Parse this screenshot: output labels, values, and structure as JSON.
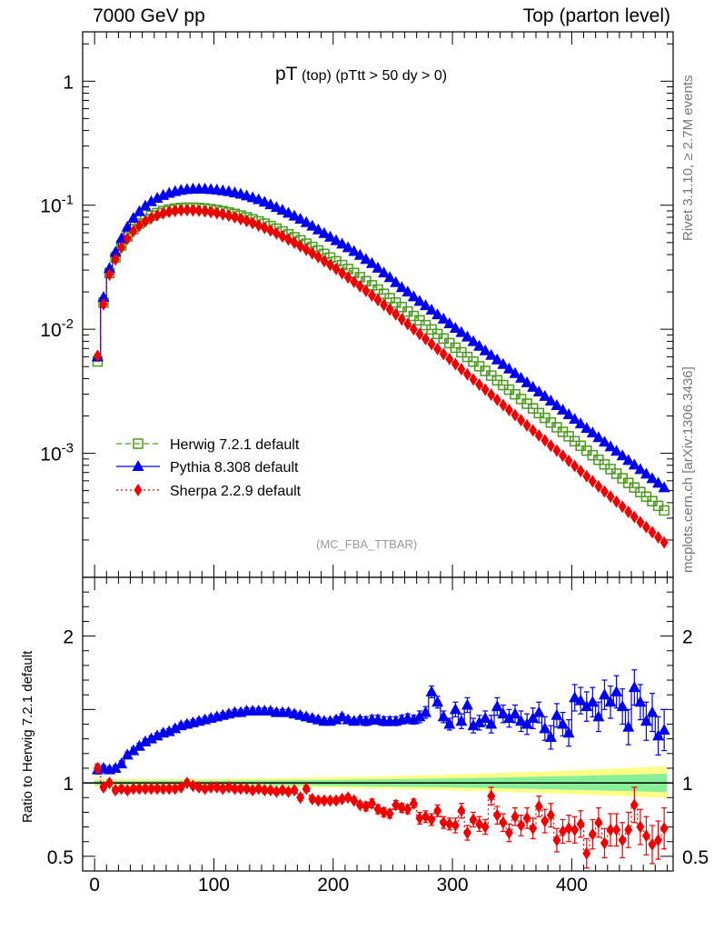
{
  "header": {
    "left": "7000 GeV pp",
    "right": "Top (parton level)"
  },
  "side_text": {
    "top": "Rivet 3.1.10, ≥ 2.7M events",
    "bottom": "mcplots.cern.ch [arXiv:1306.3436]"
  },
  "watermark": "(MC_FBA_TTBAR)",
  "plot_title": {
    "main": "pT",
    "sub1": "(top)",
    "sub2": "(pTtt > 50 dy > 0)"
  },
  "ratio_ylabel": "Ratio to Herwig 7.2.1 default",
  "colors": {
    "herwig": "#4a9a1e",
    "pythia": "#0000ee",
    "sherpa": "#ee0000",
    "band_outer": "#ffff88",
    "band_inner": "#88ee99"
  },
  "chart_data": [
    {
      "type": "line",
      "panel": "main",
      "yscale": "log",
      "ylim": [
        0.0001,
        2.5
      ],
      "xlim": [
        -10,
        485
      ],
      "yticks": [
        {
          "value": 1,
          "label": "1"
        },
        {
          "value": 0.1,
          "label": "10^-1"
        },
        {
          "value": 0.01,
          "label": "10^-2"
        },
        {
          "value": 0.001,
          "label": "10^-3"
        }
      ],
      "legend_position": "bottom-left",
      "x": [
        2.5,
        7.5,
        12.5,
        17.5,
        22.5,
        27.5,
        32.5,
        37.5,
        42.5,
        47.5,
        52.5,
        57.5,
        62.5,
        67.5,
        72.5,
        77.5,
        82.5,
        87.5,
        92.5,
        97.5,
        102.5,
        107.5,
        112.5,
        117.5,
        122.5,
        127.5,
        132.5,
        137.5,
        142.5,
        147.5,
        152.5,
        157.5,
        162.5,
        167.5,
        172.5,
        177.5,
        182.5,
        187.5,
        192.5,
        197.5,
        202.5,
        207.5,
        212.5,
        217.5,
        222.5,
        227.5,
        232.5,
        237.5,
        242.5,
        247.5,
        252.5,
        257.5,
        262.5,
        267.5,
        272.5,
        277.5,
        282.5,
        287.5,
        292.5,
        297.5,
        302.5,
        307.5,
        312.5,
        317.5,
        322.5,
        327.5,
        332.5,
        337.5,
        342.5,
        347.5,
        352.5,
        357.5,
        362.5,
        367.5,
        372.5,
        377.5,
        382.5,
        387.5,
        392.5,
        397.5,
        402.5,
        407.5,
        412.5,
        417.5,
        422.5,
        427.5,
        432.5,
        437.5,
        442.5,
        447.5,
        452.5,
        457.5,
        462.5,
        467.5,
        472.5,
        477.5
      ],
      "series": [
        {
          "name": "Herwig 7.2.1 default",
          "marker": "open-square",
          "line": "dashed",
          "values": [
            0.0055,
            0.0164,
            0.0284,
            0.038,
            0.0473,
            0.056,
            0.064,
            0.0711,
            0.0772,
            0.0824,
            0.0865,
            0.0898,
            0.0923,
            0.094,
            0.0951,
            0.0955,
            0.0955,
            0.095,
            0.0941,
            0.093,
            0.0914,
            0.0896,
            0.0875,
            0.0851,
            0.0826,
            0.0799,
            0.077,
            0.0741,
            0.071,
            0.0679,
            0.0647,
            0.0615,
            0.0583,
            0.0551,
            0.0521,
            0.049,
            0.0461,
            0.0432,
            0.0405,
            0.0378,
            0.0353,
            0.0329,
            0.0306,
            0.0284,
            0.0263,
            0.0244,
            0.0226,
            0.0209,
            0.0193,
            0.0178,
            0.0164,
            0.0151,
            0.0139,
            0.0128,
            0.0118,
            0.0108,
            0.00996,
            0.00916,
            0.00842,
            0.00773,
            0.0071,
            0.00652,
            0.00598,
            0.00548,
            0.00503,
            0.00461,
            0.00423,
            0.00388,
            0.00355,
            0.00326,
            0.00299,
            0.00274,
            0.00251,
            0.0023,
            0.00211,
            0.00193,
            0.00177,
            0.00162,
            0.00149,
            0.00137,
            0.00125,
            0.00115,
            0.00105,
            0.000966,
            0.000886,
            0.000813,
            0.000746,
            0.000685,
            0.000629,
            0.000577,
            0.00053,
            0.000487,
            0.000447,
            0.000411,
            0.000377,
            0.000346
          ]
        },
        {
          "name": "Pythia 8.308 default",
          "marker": "triangle",
          "line": "solid",
          "values": [
            0.006,
            0.0181,
            0.031,
            0.0418,
            0.0537,
            0.0668,
            0.0785,
            0.0889,
            0.0985,
            0.107,
            0.114,
            0.12,
            0.125,
            0.129,
            0.132,
            0.134,
            0.135,
            0.135,
            0.135,
            0.134,
            0.133,
            0.131,
            0.129,
            0.126,
            0.123,
            0.119,
            0.115,
            0.111,
            0.106,
            0.101,
            0.096,
            0.0912,
            0.0864,
            0.0818,
            0.0772,
            0.0726,
            0.068,
            0.0634,
            0.0592,
            0.0554,
            0.0519,
            0.0487,
            0.0455,
            0.0424,
            0.0395,
            0.0366,
            0.0339,
            0.0311,
            0.0285,
            0.0261,
            0.0238,
            0.0217,
            0.02,
            0.0183,
            0.0168,
            0.0155,
            0.0143,
            0.0131,
            0.0121,
            0.0111,
            0.0102,
            0.00942,
            0.00866,
            0.00796,
            0.00731,
            0.00672,
            0.00617,
            0.00567,
            0.00521,
            0.00479,
            0.0044,
            0.00404,
            0.00371,
            0.00341,
            0.00313,
            0.00288,
            0.00264,
            0.00243,
            0.00223,
            0.00205,
            0.00188,
            0.00173,
            0.00159,
            0.00146,
            0.00134,
            0.00123,
            0.00113,
            0.00104,
            0.000955,
            0.000877,
            0.000806,
            0.000741,
            0.000681,
            0.000626,
            0.000575,
            0.000528
          ]
        },
        {
          "name": "Sherpa 2.2.9 default",
          "marker": "diamond",
          "line": "dotted",
          "values": [
            0.0061,
            0.0159,
            0.0276,
            0.0365,
            0.0457,
            0.0538,
            0.0617,
            0.0683,
            0.0741,
            0.0789,
            0.0829,
            0.0861,
            0.0885,
            0.09,
            0.091,
            0.0912,
            0.0909,
            0.0903,
            0.0893,
            0.088,
            0.0864,
            0.0845,
            0.0823,
            0.0799,
            0.0773,
            0.0745,
            0.0716,
            0.0686,
            0.0655,
            0.0624,
            0.0592,
            0.056,
            0.0529,
            0.0498,
            0.0467,
            0.0438,
            0.0409,
            0.0382,
            0.0355,
            0.033,
            0.0306,
            0.0283,
            0.0261,
            0.0241,
            0.0222,
            0.0204,
            0.0187,
            0.0172,
            0.0157,
            0.0144,
            0.0132,
            0.012,
            0.011,
            0.01,
            0.00915,
            0.00834,
            0.0076,
            0.00693,
            0.00631,
            0.00575,
            0.00523,
            0.00476,
            0.00433,
            0.00394,
            0.00358,
            0.00326,
            0.00297,
            0.0027,
            0.00245,
            0.00223,
            0.00203,
            0.00185,
            0.00168,
            0.00153,
            0.00139,
            0.00127,
            0.00115,
            0.00105,
            0.000955,
            0.000869,
            0.00079,
            0.000719,
            0.000654,
            0.000595,
            0.000541,
            0.000492,
            0.000448,
            0.000408,
            0.000371,
            0.000337,
            0.000307,
            0.000279,
            0.000254,
            0.000231,
            0.00021,
            0.000191
          ]
        }
      ]
    },
    {
      "type": "line",
      "panel": "ratio",
      "yscale": "linear",
      "ylim": [
        0.4,
        2.4
      ],
      "xlim": [
        -10,
        485
      ],
      "yticks": [
        {
          "value": 0.5,
          "label": "0.5"
        },
        {
          "value": 1,
          "label": "1"
        },
        {
          "value": 2,
          "label": "2"
        }
      ],
      "xticks": [
        0,
        100,
        200,
        300,
        400
      ],
      "x": [
        2.5,
        7.5,
        12.5,
        17.5,
        22.5,
        27.5,
        32.5,
        37.5,
        42.5,
        47.5,
        52.5,
        57.5,
        62.5,
        67.5,
        72.5,
        77.5,
        82.5,
        87.5,
        92.5,
        97.5,
        102.5,
        107.5,
        112.5,
        117.5,
        122.5,
        127.5,
        132.5,
        137.5,
        142.5,
        147.5,
        152.5,
        157.5,
        162.5,
        167.5,
        172.5,
        177.5,
        182.5,
        187.5,
        192.5,
        197.5,
        202.5,
        207.5,
        212.5,
        217.5,
        222.5,
        227.5,
        232.5,
        237.5,
        242.5,
        247.5,
        252.5,
        257.5,
        262.5,
        267.5,
        272.5,
        277.5,
        282.5,
        287.5,
        292.5,
        297.5,
        302.5,
        307.5,
        312.5,
        317.5,
        322.5,
        327.5,
        332.5,
        337.5,
        342.5,
        347.5,
        352.5,
        357.5,
        362.5,
        367.5,
        372.5,
        377.5,
        382.5,
        387.5,
        392.5,
        397.5,
        402.5,
        407.5,
        412.5,
        417.5,
        422.5,
        427.5,
        432.5,
        437.5,
        442.5,
        447.5,
        452.5,
        457.5,
        462.5,
        467.5,
        472.5,
        477.5
      ],
      "series": [
        {
          "name": "Pythia 8.308 default",
          "values": [
            1.09,
            1.1,
            1.09,
            1.1,
            1.13,
            1.19,
            1.22,
            1.25,
            1.28,
            1.3,
            1.32,
            1.34,
            1.35,
            1.37,
            1.39,
            1.4,
            1.41,
            1.42,
            1.43,
            1.44,
            1.45,
            1.46,
            1.47,
            1.48,
            1.48,
            1.49,
            1.49,
            1.49,
            1.49,
            1.49,
            1.48,
            1.48,
            1.48,
            1.47,
            1.46,
            1.45,
            1.44,
            1.43,
            1.42,
            1.42,
            1.43,
            1.45,
            1.43,
            1.42,
            1.43,
            1.42,
            1.43,
            1.43,
            1.42,
            1.42,
            1.42,
            1.43,
            1.44,
            1.43,
            1.45,
            1.48,
            1.62,
            1.55,
            1.45,
            1.4,
            1.5,
            1.42,
            1.53,
            1.39,
            1.41,
            1.44,
            1.4,
            1.52,
            1.47,
            1.44,
            1.47,
            1.42,
            1.4,
            1.44,
            1.48,
            1.37,
            1.31,
            1.46,
            1.4,
            1.34,
            1.58,
            1.56,
            1.52,
            1.55,
            1.45,
            1.6,
            1.55,
            1.62,
            1.52,
            1.38,
            1.65,
            1.55,
            1.42,
            1.48,
            1.32,
            1.36
          ],
          "errors": [
            0.03,
            0.02,
            0.02,
            0.02,
            0.02,
            0.02,
            0.02,
            0.02,
            0.02,
            0.02,
            0.02,
            0.02,
            0.02,
            0.02,
            0.02,
            0.02,
            0.02,
            0.02,
            0.02,
            0.02,
            0.02,
            0.02,
            0.02,
            0.02,
            0.02,
            0.02,
            0.02,
            0.02,
            0.02,
            0.02,
            0.02,
            0.02,
            0.02,
            0.02,
            0.02,
            0.02,
            0.02,
            0.02,
            0.02,
            0.02,
            0.02,
            0.02,
            0.02,
            0.02,
            0.02,
            0.03,
            0.03,
            0.03,
            0.03,
            0.03,
            0.03,
            0.03,
            0.03,
            0.03,
            0.04,
            0.04,
            0.04,
            0.04,
            0.04,
            0.04,
            0.05,
            0.05,
            0.05,
            0.05,
            0.05,
            0.05,
            0.06,
            0.06,
            0.06,
            0.06,
            0.06,
            0.07,
            0.07,
            0.07,
            0.07,
            0.08,
            0.08,
            0.08,
            0.08,
            0.09,
            0.09,
            0.09,
            0.1,
            0.1,
            0.1,
            0.1,
            0.11,
            0.11,
            0.12,
            0.12,
            0.12,
            0.12,
            0.13,
            0.13,
            0.13,
            0.14
          ]
        },
        {
          "name": "Sherpa 2.2.9 default",
          "values": [
            1.1,
            0.97,
            1.0,
            0.95,
            0.96,
            0.95,
            0.96,
            0.96,
            0.96,
            0.96,
            0.96,
            0.96,
            0.96,
            0.96,
            0.97,
            1.0,
            0.98,
            0.97,
            0.96,
            0.97,
            0.97,
            0.96,
            0.97,
            0.96,
            0.96,
            0.96,
            0.95,
            0.96,
            0.95,
            0.95,
            0.94,
            0.95,
            0.94,
            0.95,
            0.9,
            0.96,
            0.89,
            0.88,
            0.88,
            0.88,
            0.88,
            0.89,
            0.9,
            0.88,
            0.85,
            0.84,
            0.86,
            0.82,
            0.8,
            0.79,
            0.85,
            0.83,
            0.82,
            0.86,
            0.76,
            0.77,
            0.75,
            0.81,
            0.73,
            0.72,
            0.71,
            0.81,
            0.66,
            0.75,
            0.72,
            0.7,
            0.91,
            0.78,
            0.73,
            0.66,
            0.77,
            0.71,
            0.76,
            0.69,
            0.84,
            0.74,
            0.78,
            0.61,
            0.67,
            0.69,
            0.68,
            0.72,
            0.52,
            0.65,
            0.73,
            0.59,
            0.68,
            0.68,
            0.61,
            0.68,
            0.85,
            0.7,
            0.64,
            0.58,
            0.61,
            0.69
          ],
          "errors": [
            0.03,
            0.02,
            0.02,
            0.02,
            0.02,
            0.02,
            0.02,
            0.02,
            0.02,
            0.02,
            0.02,
            0.02,
            0.02,
            0.02,
            0.02,
            0.02,
            0.02,
            0.02,
            0.02,
            0.02,
            0.02,
            0.02,
            0.02,
            0.02,
            0.02,
            0.02,
            0.02,
            0.02,
            0.02,
            0.02,
            0.02,
            0.02,
            0.02,
            0.02,
            0.02,
            0.02,
            0.02,
            0.02,
            0.02,
            0.02,
            0.02,
            0.02,
            0.02,
            0.02,
            0.02,
            0.03,
            0.03,
            0.03,
            0.03,
            0.03,
            0.03,
            0.03,
            0.03,
            0.03,
            0.04,
            0.04,
            0.04,
            0.04,
            0.04,
            0.04,
            0.05,
            0.05,
            0.05,
            0.05,
            0.05,
            0.05,
            0.06,
            0.06,
            0.06,
            0.06,
            0.06,
            0.07,
            0.07,
            0.07,
            0.07,
            0.08,
            0.08,
            0.08,
            0.08,
            0.09,
            0.09,
            0.09,
            0.1,
            0.1,
            0.1,
            0.1,
            0.11,
            0.11,
            0.12,
            0.12,
            0.12,
            0.12,
            0.13,
            0.13,
            0.13,
            0.14
          ]
        }
      ]
    }
  ]
}
